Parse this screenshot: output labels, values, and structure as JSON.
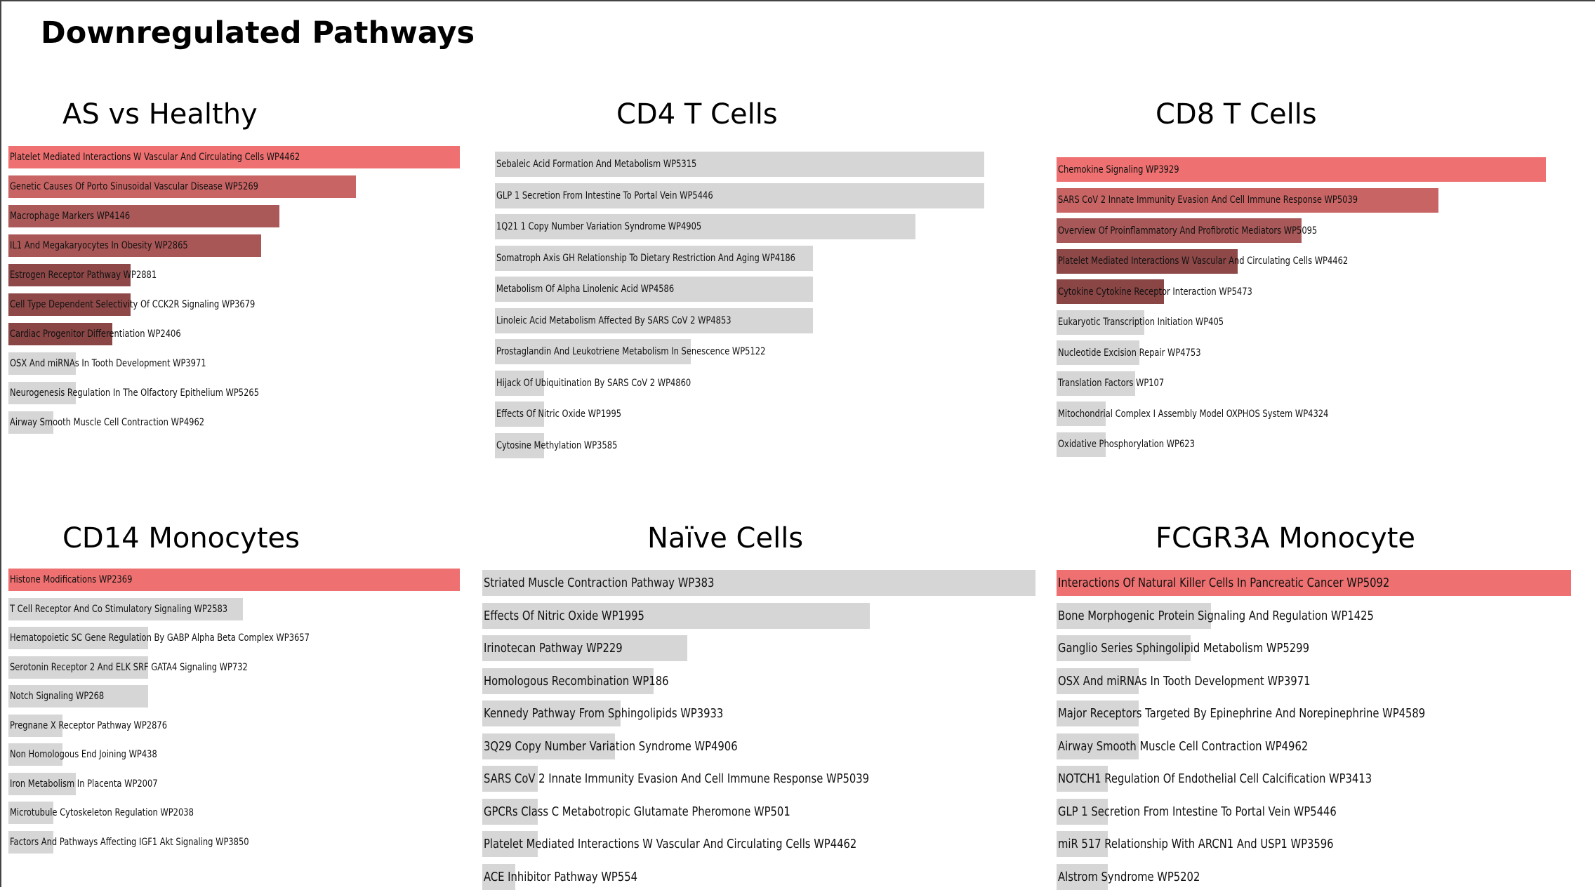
{
  "page_title": "Downregulated Pathways",
  "colors": {
    "top": "#ee7070",
    "shade_dark": "#a45656",
    "neutral": "#d6d6d6"
  },
  "chart_data": [
    {
      "type": "bar",
      "orientation": "horizontal",
      "title": "AS vs Healthy",
      "categories": [
        "Platelet Mediated Interactions W Vascular And Circulating Cells WP4462",
        "Genetic Causes Of Porto Sinusoidal Vascular Disease WP5269",
        "Macrophage Markers WP4146",
        "IL1 And Megakaryocytes In Obesity WP2865",
        "Estrogen Receptor Pathway WP2881",
        "Cell Type Dependent Selectivity Of CCK2R Signaling WP3679",
        "Cardiac Progenitor Differentiation WP2406",
        "OSX And miRNAs In Tooth Development WP3971",
        "Neurogenesis Regulation In The Olfactory Epithelium WP5265",
        "Airway Smooth Muscle Cell Contraction WP4962"
      ],
      "values": [
        1.0,
        0.77,
        0.6,
        0.56,
        0.27,
        0.27,
        0.23,
        0.15,
        0.15,
        0.1
      ],
      "bar_colors": [
        "#ee7070",
        "#c86464",
        "#ab5858",
        "#a95656",
        "#8f4848",
        "#8f4848",
        "#8a4545",
        "#d6d6d6",
        "#d6d6d6",
        "#d6d6d6"
      ]
    },
    {
      "type": "bar",
      "orientation": "horizontal",
      "title": "CD4 T Cells",
      "categories": [
        "Sebaleic Acid Formation And Metabolism WP5315",
        "GLP 1 Secretion From Intestine To Portal Vein WP5446",
        "1Q21 1 Copy Number Variation Syndrome WP4905",
        "Somatroph Axis GH Relationship To Dietary Restriction And Aging WP4186",
        "Metabolism Of Alpha Linolenic Acid WP4586",
        "Linoleic Acid Metabolism Affected By SARS CoV 2 WP4853",
        "Prostaglandin And Leukotriene Metabolism In Senescence WP5122",
        "Hijack Of Ubiquitination By SARS CoV 2 WP4860",
        "Effects Of Nitric Oxide WP1995",
        "Cytosine Methylation WP3585"
      ],
      "values": [
        1.0,
        1.0,
        0.86,
        0.65,
        0.65,
        0.65,
        0.4,
        0.1,
        0.1,
        0.1
      ],
      "bar_colors": [
        "#d6d6d6",
        "#d6d6d6",
        "#d6d6d6",
        "#d6d6d6",
        "#d6d6d6",
        "#d6d6d6",
        "#d6d6d6",
        "#d6d6d6",
        "#d6d6d6",
        "#d6d6d6"
      ]
    },
    {
      "type": "bar",
      "orientation": "horizontal",
      "title": "CD8 T Cells",
      "categories": [
        "Chemokine Signaling WP3929",
        "SARS CoV 2 Innate Immunity Evasion And Cell Immune Response WP5039",
        "Overview Of Proinflammatory And Profibrotic Mediators WP5095",
        "Platelet Mediated Interactions W Vascular And Circulating Cells WP4462",
        "Cytokine Cytokine Receptor Interaction WP5473",
        "Eukaryotic Transcription Initiation WP405",
        "Nucleotide Excision Repair WP4753",
        "Translation Factors WP107",
        "Mitochondrial Complex I Assembly Model OXPHOS System WP4324",
        "Oxidative Phosphorylation WP623"
      ],
      "values": [
        1.0,
        0.78,
        0.5,
        0.37,
        0.22,
        0.18,
        0.17,
        0.16,
        0.1,
        0.1
      ],
      "bar_colors": [
        "#ee7070",
        "#c86464",
        "#a85858",
        "#8e4848",
        "#8a4545",
        "#d6d6d6",
        "#d6d6d6",
        "#d6d6d6",
        "#d6d6d6",
        "#d6d6d6"
      ]
    },
    {
      "type": "bar",
      "orientation": "horizontal",
      "title": "CD14 Monocytes",
      "categories": [
        "Histone Modifications WP2369",
        "T Cell Receptor And Co Stimulatory Signaling WP2583",
        "Hematopoietic SC Gene Regulation By GABP Alpha Beta Complex WP3657",
        "Serotonin Receptor 2 And ELK SRF GATA4 Signaling WP732",
        "Notch Signaling WP268",
        "Pregnane X Receptor Pathway WP2876",
        "Non Homologous End Joining WP438",
        "Iron Metabolism In Placenta WP2007",
        "Microtubule Cytoskeleton Regulation WP2038",
        "Factors And Pathways Affecting IGF1 Akt Signaling WP3850"
      ],
      "values": [
        1.0,
        0.52,
        0.31,
        0.31,
        0.31,
        0.12,
        0.12,
        0.15,
        0.1,
        0.1
      ],
      "bar_colors": [
        "#ee7070",
        "#d6d6d6",
        "#d6d6d6",
        "#d6d6d6",
        "#d6d6d6",
        "#d6d6d6",
        "#d6d6d6",
        "#d6d6d6",
        "#d6d6d6",
        "#d6d6d6"
      ]
    },
    {
      "type": "bar",
      "orientation": "horizontal",
      "title": "Naïve Cells",
      "categories": [
        "Striated Muscle Contraction Pathway WP383",
        "Effects Of Nitric Oxide WP1995",
        "Irinotecan Pathway WP229",
        "Homologous Recombination WP186",
        "Kennedy Pathway From Sphingolipids WP3933",
        "3Q29 Copy Number Variation Syndrome WP4906",
        "SARS CoV 2 Innate Immunity Evasion And Cell Immune Response WP5039",
        "GPCRs Class C Metabotropic Glutamate Pheromone WP501",
        "Platelet Mediated Interactions W Vascular And Circulating Cells WP4462",
        "ACE Inhibitor Pathway WP554"
      ],
      "values": [
        1.0,
        0.7,
        0.37,
        0.31,
        0.25,
        0.24,
        0.1,
        0.1,
        0.1,
        0.06
      ],
      "bar_colors": [
        "#d6d6d6",
        "#d6d6d6",
        "#d6d6d6",
        "#d6d6d6",
        "#d6d6d6",
        "#d6d6d6",
        "#d6d6d6",
        "#d6d6d6",
        "#d6d6d6",
        "#d6d6d6"
      ]
    },
    {
      "type": "bar",
      "orientation": "horizontal",
      "title": "FCGR3A Monocyte",
      "categories": [
        "Interactions Of Natural Killer Cells In Pancreatic Cancer WP5092",
        "Bone Morphogenic Protein Signaling And Regulation WP1425",
        "Ganglio Series Sphingolipid Metabolism WP5299",
        "OSX And miRNAs In Tooth Development WP3971",
        "Major Receptors Targeted By Epinephrine And Norepinephrine WP4589",
        "Airway Smooth Muscle Cell Contraction WP4962",
        "NOTCH1 Regulation Of Endothelial Cell Calcification WP3413",
        "GLP 1 Secretion From Intestine To Portal Vein WP5446",
        "miR 517 Relationship With ARCN1 And USP1 WP3596",
        "Alstrom Syndrome WP5202"
      ],
      "values": [
        1.0,
        0.3,
        0.26,
        0.16,
        0.16,
        0.16,
        0.1,
        0.1,
        0.1,
        0.1
      ],
      "bar_colors": [
        "#ee7070",
        "#d6d6d6",
        "#d6d6d6",
        "#d6d6d6",
        "#d6d6d6",
        "#d6d6d6",
        "#d6d6d6",
        "#d6d6d6",
        "#d6d6d6",
        "#d6d6d6"
      ]
    }
  ]
}
